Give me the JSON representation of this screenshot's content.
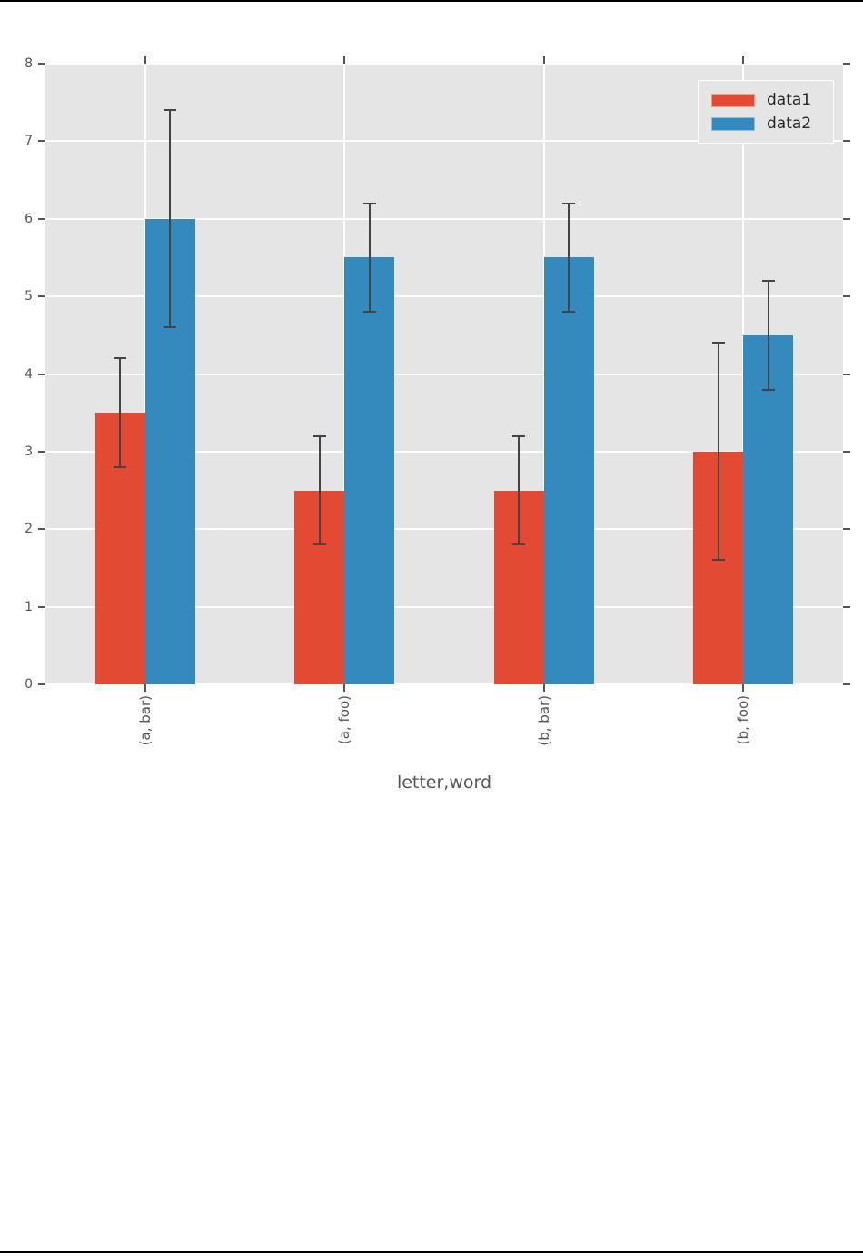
{
  "chart_data": {
    "type": "bar",
    "title": "",
    "xlabel": "letter,word",
    "ylabel": "",
    "categories": [
      "(a, bar)",
      "(a, foo)",
      "(b, bar)",
      "(b, foo)"
    ],
    "series": [
      {
        "name": "data1",
        "color": "#E24A33",
        "values": [
          3.5,
          2.5,
          2.5,
          3.0
        ],
        "yerr": [
          0.7,
          0.7,
          0.7,
          1.4
        ]
      },
      {
        "name": "data2",
        "color": "#348ABD",
        "values": [
          6.0,
          5.5,
          5.5,
          4.5
        ],
        "yerr": [
          1.4,
          0.7,
          0.7,
          0.7
        ]
      }
    ],
    "ylim": [
      0,
      8
    ],
    "yticks": [
      "0",
      "1",
      "2",
      "3",
      "4",
      "5",
      "6",
      "7",
      "8"
    ],
    "grid": true,
    "legend": {
      "position": "upper right",
      "entries": [
        "data1",
        "data2"
      ]
    },
    "plot_background": "#E5E5E5",
    "errorbar_color": "#444444",
    "tick_color": "#555555",
    "label_color": "#555555"
  }
}
